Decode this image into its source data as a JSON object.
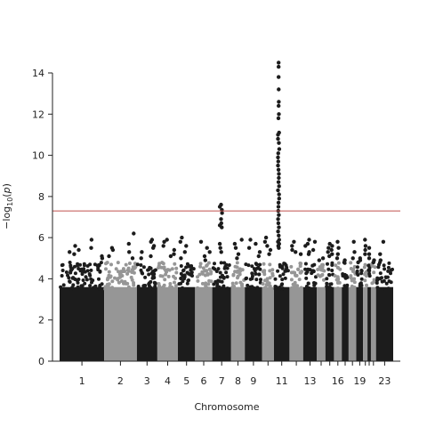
{
  "chart_data": {
    "type": "scatter",
    "xlabel": "Chromosome",
    "ylabel": "−log10(p)",
    "ylim": [
      0,
      14.5
    ],
    "y_ticks": [
      0,
      2,
      4,
      6,
      8,
      10,
      12,
      14
    ],
    "grid": false,
    "legend": "none",
    "significance_line": {
      "y": 7.3,
      "color": "#c0504d"
    },
    "series_colors": [
      "#1c1c1c",
      "#969696"
    ],
    "chromosomes": [
      {
        "id": "1",
        "label": "1",
        "peak": 5.9,
        "tops": [
          5.9,
          5.6,
          5.5,
          5.4,
          5.3,
          5.2,
          5.1,
          5.0
        ]
      },
      {
        "id": "2",
        "label": "2",
        "peak": 6.2,
        "tops": [
          6.2,
          5.7,
          5.5,
          5.4,
          5.3,
          5.1,
          5.0
        ]
      },
      {
        "id": "3",
        "label": "3",
        "peak": 5.9,
        "tops": [
          5.9,
          5.8,
          5.6,
          5.5,
          5.3,
          5.1,
          5.0
        ]
      },
      {
        "id": "4",
        "label": "4",
        "peak": 5.9,
        "tops": [
          5.9,
          5.8,
          5.6,
          5.4,
          5.2,
          5.1
        ]
      },
      {
        "id": "5",
        "label": "5",
        "peak": 6.0,
        "tops": [
          6.0,
          5.8,
          5.6,
          5.3,
          5.0
        ]
      },
      {
        "id": "6",
        "label": "6",
        "peak": 5.8,
        "tops": [
          5.8,
          5.5,
          5.3,
          5.1,
          4.9
        ]
      },
      {
        "id": "7",
        "label": "7",
        "peak": 7.6,
        "tops": [
          7.6,
          7.5,
          7.35,
          7.2,
          6.9,
          6.7,
          6.6,
          6.5,
          5.7,
          5.5,
          5.3
        ]
      },
      {
        "id": "8",
        "label": "8",
        "peak": 5.9,
        "tops": [
          5.9,
          5.7,
          5.5,
          5.2,
          5.0
        ]
      },
      {
        "id": "9",
        "label": "9",
        "peak": 5.9,
        "tops": [
          5.9,
          5.7,
          5.5,
          5.3,
          5.1
        ]
      },
      {
        "id": "10",
        "label": "",
        "peak": 6.0,
        "tops": [
          6.0,
          5.8,
          5.6,
          5.4,
          5.2
        ]
      },
      {
        "id": "11",
        "label": "11",
        "peak": 14.5,
        "tops": [
          14.5,
          14.3,
          13.8,
          13.2,
          12.6,
          12.4,
          12.0,
          11.8,
          11.1,
          11.0,
          10.8,
          10.6,
          10.3,
          10.1,
          9.9,
          9.7,
          9.5,
          9.3,
          9.1,
          8.9,
          8.7,
          8.5,
          8.3,
          8.1,
          7.9,
          7.7,
          7.5,
          7.3,
          7.1,
          6.9,
          6.7,
          6.5,
          6.3,
          6.1,
          5.9,
          5.8,
          5.7,
          5.6,
          5.5
        ]
      },
      {
        "id": "12",
        "label": "",
        "peak": 5.8,
        "tops": [
          5.8,
          5.6,
          5.4,
          5.3,
          5.2
        ]
      },
      {
        "id": "13",
        "label": "13",
        "peak": 5.9,
        "tops": [
          5.9,
          5.8,
          5.7,
          5.6,
          5.4,
          5.3,
          5.2
        ]
      },
      {
        "id": "14",
        "label": "",
        "peak": 5.0,
        "tops": [
          5.0,
          4.9
        ]
      },
      {
        "id": "15",
        "label": "",
        "peak": 5.7,
        "tops": [
          5.7,
          5.6,
          5.5,
          5.4,
          5.3,
          5.2,
          5.1
        ]
      },
      {
        "id": "16",
        "label": "16",
        "peak": 5.8,
        "tops": [
          5.8,
          5.5,
          5.2,
          5.0
        ]
      },
      {
        "id": "17",
        "label": "",
        "peak": 4.9,
        "tops": [
          4.9,
          4.8
        ]
      },
      {
        "id": "18",
        "label": "",
        "peak": 5.8,
        "tops": [
          5.8,
          5.3,
          5.0
        ]
      },
      {
        "id": "19",
        "label": "19",
        "peak": 5.0,
        "tops": [
          5.0,
          4.9,
          4.8
        ]
      },
      {
        "id": "20",
        "label": "",
        "peak": 5.9,
        "tops": [
          5.9,
          5.6,
          5.4,
          5.2
        ]
      },
      {
        "id": "21",
        "label": "",
        "peak": 5.5,
        "tops": [
          5.5,
          5.2,
          5.0
        ]
      },
      {
        "id": "22",
        "label": "",
        "peak": 4.9,
        "tops": [
          4.9,
          4.8
        ]
      },
      {
        "id": "23",
        "label": "23",
        "peak": 5.8,
        "tops": [
          5.8,
          5.2,
          4.9
        ]
      }
    ]
  }
}
